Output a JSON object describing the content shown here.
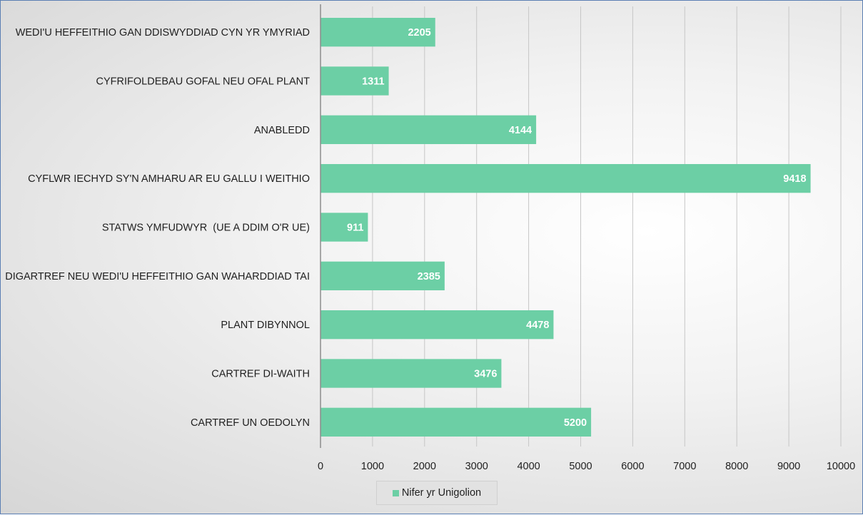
{
  "chart_data": {
    "type": "bar",
    "orientation": "horizontal",
    "categories": [
      "WEDI'U HEFFEITHIO GAN DDISWYDDIAD CYN YR YMYRIAD",
      "CYFRIFOLDEBAU GOFAL NEU OFAL PLANT",
      "ANABLEDD",
      "CYFLWR IECHYD SY'N AMHARU AR EU GALLU I WEITHIO",
      "STATWS YMFUDWYR  (UE A DDIM O'R UE)",
      "DIGARTREF NEU WEDI'U HEFFEITHIO GAN WAHARDDIAD TAI",
      "PLANT DIBYNNOL",
      "CARTREF DI-WAITH",
      "CARTREF UN OEDOLYN"
    ],
    "series": [
      {
        "name": "Nifer yr Unigolion",
        "values": [
          2205,
          1311,
          4144,
          9418,
          911,
          2385,
          4478,
          3476,
          5200
        ],
        "color": "#6ccfa5"
      }
    ],
    "xlim": [
      0,
      10000
    ],
    "xticks": [
      0,
      1000,
      2000,
      3000,
      4000,
      5000,
      6000,
      7000,
      8000,
      9000,
      10000
    ],
    "data_labels": true,
    "grid": "vertical",
    "legend_position": "bottom",
    "title": "",
    "xlabel": "",
    "ylabel": ""
  }
}
